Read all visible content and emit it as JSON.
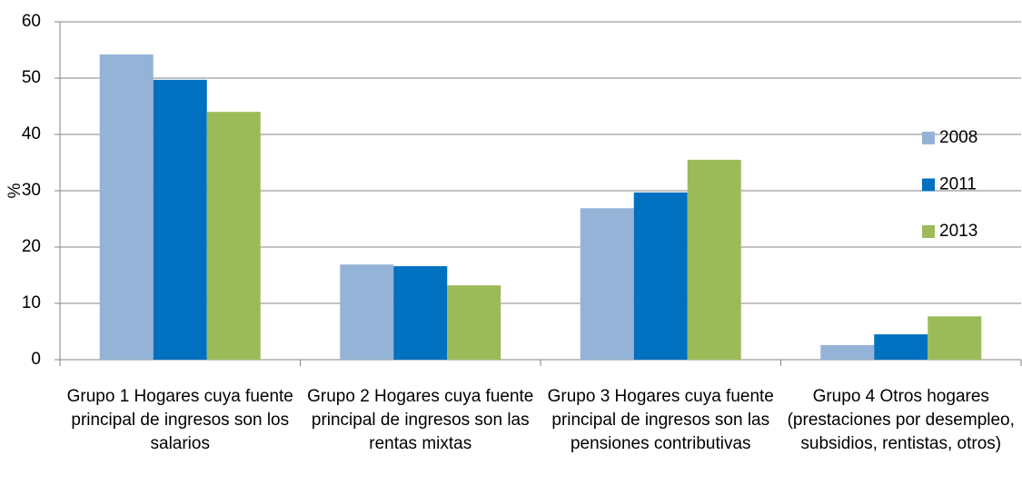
{
  "chart_data": {
    "type": "bar",
    "y_label": "%",
    "categories": [
      "Grupo 1 Hogares cuya fuente principal de ingresos son los salarios",
      "Grupo 2 Hogares cuya fuente principal de ingresos son las rentas mixtas",
      "Grupo 3 Hogares cuya fuente principal de ingresos son las pensiones contributivas",
      "Grupo 4 Otros hogares (prestaciones por desempleo, subsidios, rentistas, otros)"
    ],
    "series": [
      {
        "name": "2008",
        "color": "#95b3d7",
        "values": [
          54.2,
          16.9,
          26.9,
          2.6
        ]
      },
      {
        "name": "2011",
        "color": "#0070c0",
        "values": [
          49.7,
          16.6,
          29.7,
          4.5
        ]
      },
      {
        "name": "2013",
        "color": "#9bbb59",
        "values": [
          44.0,
          13.2,
          35.5,
          7.7
        ]
      }
    ],
    "ylim": [
      0,
      60
    ],
    "yticks": [
      0,
      10,
      20,
      30,
      40,
      50,
      60
    ],
    "grid": true,
    "legend": "right"
  }
}
